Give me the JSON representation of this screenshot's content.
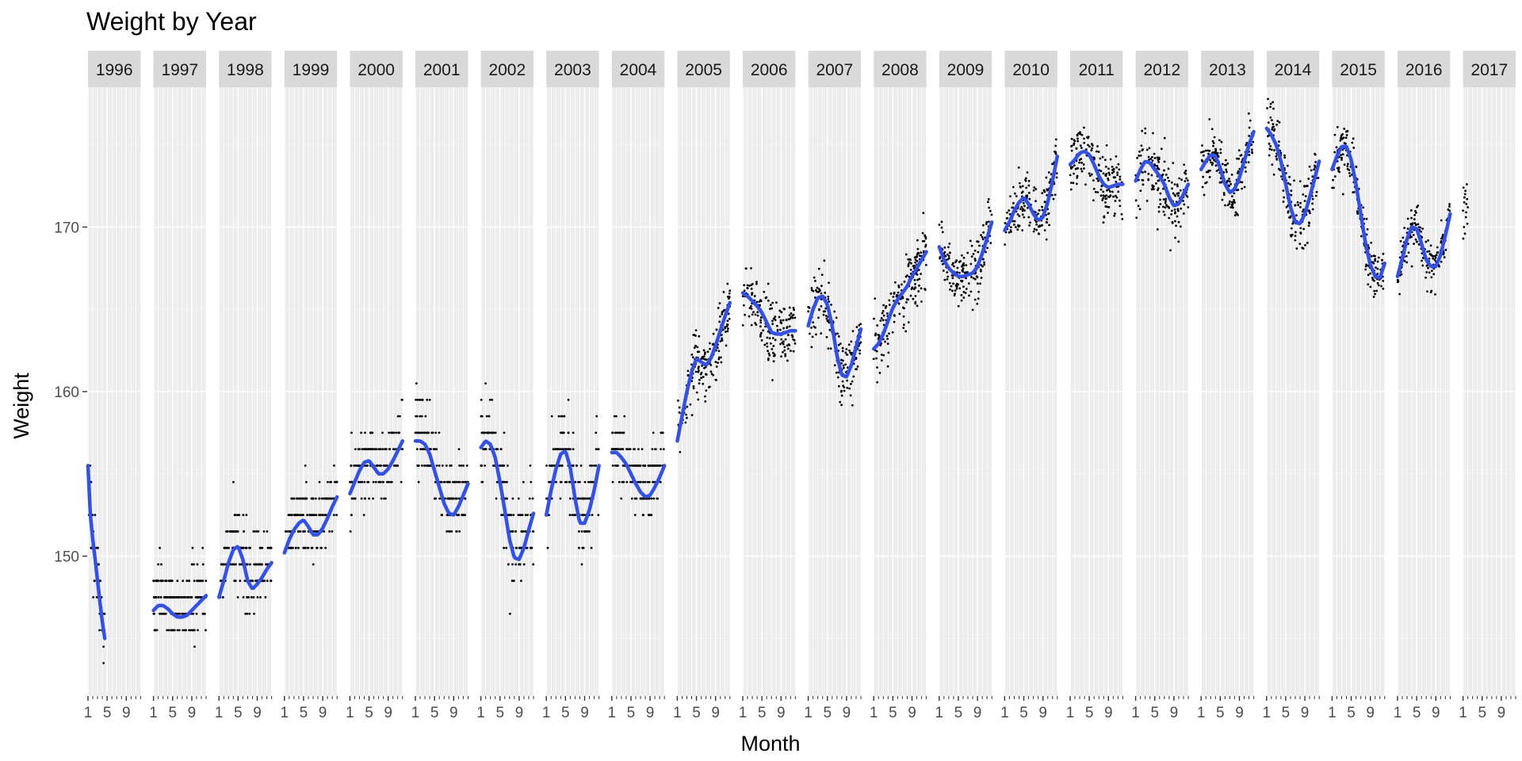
{
  "chart_data": {
    "type": "scatter",
    "title": "Weight by Year",
    "xlabel": "Month",
    "ylabel": "Weight",
    "facet_by": "Year",
    "xlim": [
      1,
      12
    ],
    "ylim": [
      141.5,
      178.5
    ],
    "x_ticks": [
      1,
      5,
      9
    ],
    "x_tick_labels": [
      "1",
      "5",
      "9"
    ],
    "y_ticks": [
      150,
      160,
      170
    ],
    "y_tick_labels": [
      "150",
      "160",
      "170"
    ],
    "grid": true,
    "smooth_line_color": "#3050f0",
    "point_color": "#000000",
    "panel_background": "#ebebeb",
    "strip_background": "#d9d9d9",
    "panels": [
      {
        "year": "1996",
        "months": [
          1,
          4.5
        ],
        "smooth": [
          [
            1,
            155.5
          ],
          [
            1.5,
            152.5
          ],
          [
            2,
            151
          ],
          [
            2.5,
            149.8
          ],
          [
            3,
            148.5
          ],
          [
            3.5,
            147.2
          ],
          [
            4,
            146
          ],
          [
            4.5,
            145
          ]
        ],
        "spread": 1.6
      },
      {
        "year": "1997",
        "months": [
          1,
          12
        ],
        "smooth": [
          [
            1,
            146.7
          ],
          [
            2,
            147
          ],
          [
            3,
            147
          ],
          [
            4,
            146.8
          ],
          [
            5,
            146.5
          ],
          [
            6,
            146.3
          ],
          [
            7,
            146.3
          ],
          [
            8,
            146.4
          ],
          [
            9,
            146.7
          ],
          [
            10,
            147
          ],
          [
            11,
            147.3
          ],
          [
            12,
            147.6
          ]
        ],
        "spread": 1.6
      },
      {
        "year": "1998",
        "months": [
          1,
          12
        ],
        "smooth": [
          [
            1,
            147.5
          ],
          [
            2,
            148.5
          ],
          [
            3,
            149.6
          ],
          [
            4,
            150.4
          ],
          [
            5,
            150.6
          ],
          [
            6,
            149.8
          ],
          [
            7,
            148.5
          ],
          [
            8,
            148
          ],
          [
            9,
            148.3
          ],
          [
            10,
            148.7
          ],
          [
            11,
            149.2
          ],
          [
            12,
            149.6
          ]
        ],
        "spread": 1.6
      },
      {
        "year": "1999",
        "months": [
          1,
          12
        ],
        "smooth": [
          [
            1,
            150.2
          ],
          [
            2,
            151
          ],
          [
            3,
            151.6
          ],
          [
            4,
            152
          ],
          [
            5,
            152.2
          ],
          [
            6,
            151.8
          ],
          [
            7,
            151.3
          ],
          [
            8,
            151.3
          ],
          [
            9,
            151.7
          ],
          [
            10,
            152.3
          ],
          [
            11,
            153
          ],
          [
            12,
            153.6
          ]
        ],
        "spread": 1.4
      },
      {
        "year": "2000",
        "months": [
          1,
          12
        ],
        "smooth": [
          [
            1,
            153.8
          ],
          [
            2,
            154.5
          ],
          [
            3,
            155.2
          ],
          [
            4,
            155.7
          ],
          [
            5,
            155.8
          ],
          [
            6,
            155.4
          ],
          [
            7,
            155
          ],
          [
            8,
            155
          ],
          [
            9,
            155.3
          ],
          [
            10,
            155.8
          ],
          [
            11,
            156.4
          ],
          [
            12,
            157
          ]
        ],
        "spread": 1.5
      },
      {
        "year": "2001",
        "months": [
          1,
          12
        ],
        "smooth": [
          [
            1,
            157
          ],
          [
            2,
            157
          ],
          [
            3,
            156.8
          ],
          [
            4,
            156.2
          ],
          [
            5,
            155.2
          ],
          [
            6,
            154.2
          ],
          [
            7,
            153.2
          ],
          [
            8,
            152.6
          ],
          [
            9,
            152.5
          ],
          [
            10,
            153
          ],
          [
            11,
            153.7
          ],
          [
            12,
            154.4
          ]
        ],
        "spread": 1.6
      },
      {
        "year": "2002",
        "months": [
          1,
          12
        ],
        "smooth": [
          [
            1,
            156.6
          ],
          [
            2,
            157
          ],
          [
            3,
            156.8
          ],
          [
            4,
            156
          ],
          [
            5,
            154.5
          ],
          [
            6,
            152.8
          ],
          [
            7,
            151
          ],
          [
            8,
            149.9
          ],
          [
            9,
            149.8
          ],
          [
            10,
            150.5
          ],
          [
            11,
            151.6
          ],
          [
            12,
            152.6
          ]
        ],
        "spread": 1.8
      },
      {
        "year": "2003",
        "months": [
          1,
          12
        ],
        "smooth": [
          [
            1,
            152.5
          ],
          [
            2,
            154
          ],
          [
            3,
            155.3
          ],
          [
            4,
            156.2
          ],
          [
            5,
            156.4
          ],
          [
            6,
            155.4
          ],
          [
            7,
            153.5
          ],
          [
            8,
            152
          ],
          [
            9,
            152
          ],
          [
            10,
            152.8
          ],
          [
            11,
            154
          ],
          [
            12,
            155.5
          ]
        ],
        "spread": 1.8
      },
      {
        "year": "2004",
        "months": [
          1,
          12
        ],
        "smooth": [
          [
            1,
            156.3
          ],
          [
            2,
            156.3
          ],
          [
            3,
            156
          ],
          [
            4,
            155.6
          ],
          [
            5,
            155
          ],
          [
            6,
            154.4
          ],
          [
            7,
            153.9
          ],
          [
            8,
            153.6
          ],
          [
            9,
            153.7
          ],
          [
            10,
            154.2
          ],
          [
            11,
            154.8
          ],
          [
            12,
            155.5
          ]
        ],
        "spread": 1.3
      },
      {
        "year": "2005",
        "months": [
          1,
          12
        ],
        "smooth": [
          [
            1,
            157
          ],
          [
            2,
            158.5
          ],
          [
            3,
            160
          ],
          [
            4,
            161.2
          ],
          [
            5,
            162
          ],
          [
            6,
            161.8
          ],
          [
            7,
            161.6
          ],
          [
            8,
            162
          ],
          [
            9,
            162.8
          ],
          [
            10,
            163.7
          ],
          [
            11,
            164.6
          ],
          [
            12,
            165.4
          ]
        ],
        "spread": 1.3
      },
      {
        "year": "2006",
        "months": [
          1,
          12
        ],
        "smooth": [
          [
            1,
            166
          ],
          [
            2,
            165.8
          ],
          [
            3,
            165.5
          ],
          [
            4,
            165.2
          ],
          [
            5,
            164.8
          ],
          [
            6,
            164.2
          ],
          [
            7,
            163.6
          ],
          [
            8,
            163.5
          ],
          [
            9,
            163.5
          ],
          [
            10,
            163.6
          ],
          [
            11,
            163.7
          ],
          [
            12,
            163.7
          ]
        ],
        "spread": 1.3
      },
      {
        "year": "2007",
        "months": [
          1,
          12
        ],
        "smooth": [
          [
            1,
            164
          ],
          [
            2,
            165
          ],
          [
            3,
            165.7
          ],
          [
            4,
            165.8
          ],
          [
            5,
            165.3
          ],
          [
            6,
            164
          ],
          [
            7,
            162.2
          ],
          [
            8,
            161
          ],
          [
            9,
            160.9
          ],
          [
            10,
            161.6
          ],
          [
            11,
            162.7
          ],
          [
            12,
            163.8
          ]
        ],
        "spread": 1.3
      },
      {
        "year": "2008",
        "months": [
          1,
          12
        ],
        "smooth": [
          [
            1,
            162.6
          ],
          [
            2,
            162.9
          ],
          [
            3,
            163.5
          ],
          [
            4,
            164.3
          ],
          [
            5,
            165.1
          ],
          [
            6,
            165.6
          ],
          [
            7,
            166
          ],
          [
            8,
            166.4
          ],
          [
            9,
            167
          ],
          [
            10,
            167.5
          ],
          [
            11,
            168
          ],
          [
            12,
            168.5
          ]
        ],
        "spread": 1.3
      },
      {
        "year": "2009",
        "months": [
          1,
          12
        ],
        "smooth": [
          [
            1,
            168.8
          ],
          [
            2,
            168
          ],
          [
            3,
            167.5
          ],
          [
            4,
            167.2
          ],
          [
            5,
            167
          ],
          [
            6,
            167
          ],
          [
            7,
            167.1
          ],
          [
            8,
            167.2
          ],
          [
            9,
            167.6
          ],
          [
            10,
            168.4
          ],
          [
            11,
            169.3
          ],
          [
            12,
            170.3
          ]
        ],
        "spread": 1.1
      },
      {
        "year": "2010",
        "months": [
          1,
          12
        ],
        "smooth": [
          [
            1,
            169.8
          ],
          [
            2,
            170.3
          ],
          [
            3,
            171
          ],
          [
            4,
            171.5
          ],
          [
            5,
            171.8
          ],
          [
            6,
            171.4
          ],
          [
            7,
            170.8
          ],
          [
            8,
            170.4
          ],
          [
            9,
            170.6
          ],
          [
            10,
            171.5
          ],
          [
            11,
            172.8
          ],
          [
            12,
            174.3
          ]
        ],
        "spread": 1.1
      },
      {
        "year": "2011",
        "months": [
          1,
          12
        ],
        "smooth": [
          [
            1,
            173.8
          ],
          [
            2,
            174.1
          ],
          [
            3,
            174.5
          ],
          [
            4,
            174.6
          ],
          [
            5,
            174.4
          ],
          [
            6,
            173.8
          ],
          [
            7,
            173.1
          ],
          [
            8,
            172.6
          ],
          [
            9,
            172.4
          ],
          [
            10,
            172.5
          ],
          [
            11,
            172.6
          ],
          [
            12,
            172.6
          ]
        ],
        "spread": 1.3
      },
      {
        "year": "2012",
        "months": [
          1,
          12
        ],
        "smooth": [
          [
            1,
            172.8
          ],
          [
            2,
            173.5
          ],
          [
            3,
            174
          ],
          [
            4,
            173.9
          ],
          [
            5,
            173.5
          ],
          [
            6,
            173.1
          ],
          [
            7,
            172.6
          ],
          [
            8,
            171.8
          ],
          [
            9,
            171.3
          ],
          [
            10,
            171.4
          ],
          [
            11,
            172
          ],
          [
            12,
            172.6
          ]
        ],
        "spread": 1.4
      },
      {
        "year": "2013",
        "months": [
          1,
          12
        ],
        "smooth": [
          [
            1,
            173.5
          ],
          [
            2,
            174
          ],
          [
            3,
            174.4
          ],
          [
            4,
            174.3
          ],
          [
            5,
            173.6
          ],
          [
            6,
            172.6
          ],
          [
            7,
            172.1
          ],
          [
            8,
            172.3
          ],
          [
            9,
            173
          ],
          [
            10,
            174
          ],
          [
            11,
            175
          ],
          [
            12,
            175.8
          ]
        ],
        "spread": 1.1
      },
      {
        "year": "2014",
        "months": [
          1,
          12
        ],
        "smooth": [
          [
            1,
            176
          ],
          [
            2,
            175.6
          ],
          [
            3,
            175
          ],
          [
            4,
            174
          ],
          [
            5,
            172.6
          ],
          [
            6,
            171.2
          ],
          [
            7,
            170.3
          ],
          [
            8,
            170.2
          ],
          [
            9,
            170.8
          ],
          [
            10,
            171.8
          ],
          [
            11,
            172.9
          ],
          [
            12,
            174
          ]
        ],
        "spread": 1.2
      },
      {
        "year": "2015",
        "months": [
          1,
          12
        ],
        "smooth": [
          [
            1,
            173.5
          ],
          [
            2,
            174.3
          ],
          [
            3,
            174.9
          ],
          [
            4,
            174.9
          ],
          [
            5,
            174.1
          ],
          [
            6,
            172.6
          ],
          [
            7,
            170.8
          ],
          [
            8,
            169
          ],
          [
            9,
            167.7
          ],
          [
            10,
            167
          ],
          [
            11,
            166.9
          ],
          [
            12,
            167.8
          ]
        ],
        "spread": 1.0
      },
      {
        "year": "2016",
        "months": [
          1,
          12
        ],
        "smooth": [
          [
            1,
            167
          ],
          [
            2,
            168.1
          ],
          [
            3,
            169.3
          ],
          [
            4,
            170
          ],
          [
            5,
            169.9
          ],
          [
            6,
            169
          ],
          [
            7,
            168
          ],
          [
            8,
            167.6
          ],
          [
            9,
            167.6
          ],
          [
            10,
            168.3
          ],
          [
            11,
            169.5
          ],
          [
            12,
            170.8
          ]
        ],
        "spread": 1.0
      },
      {
        "year": "2017",
        "months": [
          1,
          2
        ],
        "smooth": [],
        "spread": 1.2,
        "points": [
          [
            1.0,
            171.0
          ],
          [
            1.1,
            172.4
          ],
          [
            1.2,
            170.0
          ],
          [
            1.3,
            171.8
          ],
          [
            1.4,
            169.6
          ],
          [
            1.5,
            172.2
          ],
          [
            1.6,
            170.6
          ],
          [
            1.7,
            171.4
          ],
          [
            1.8,
            172.6
          ],
          [
            1.9,
            170.2
          ],
          [
            2.0,
            171.2
          ],
          [
            1.05,
            169.3
          ],
          [
            1.25,
            171.5
          ],
          [
            1.45,
            172.0
          ],
          [
            1.65,
            170.9
          ],
          [
            1.85,
            171.7
          ]
        ]
      }
    ]
  }
}
